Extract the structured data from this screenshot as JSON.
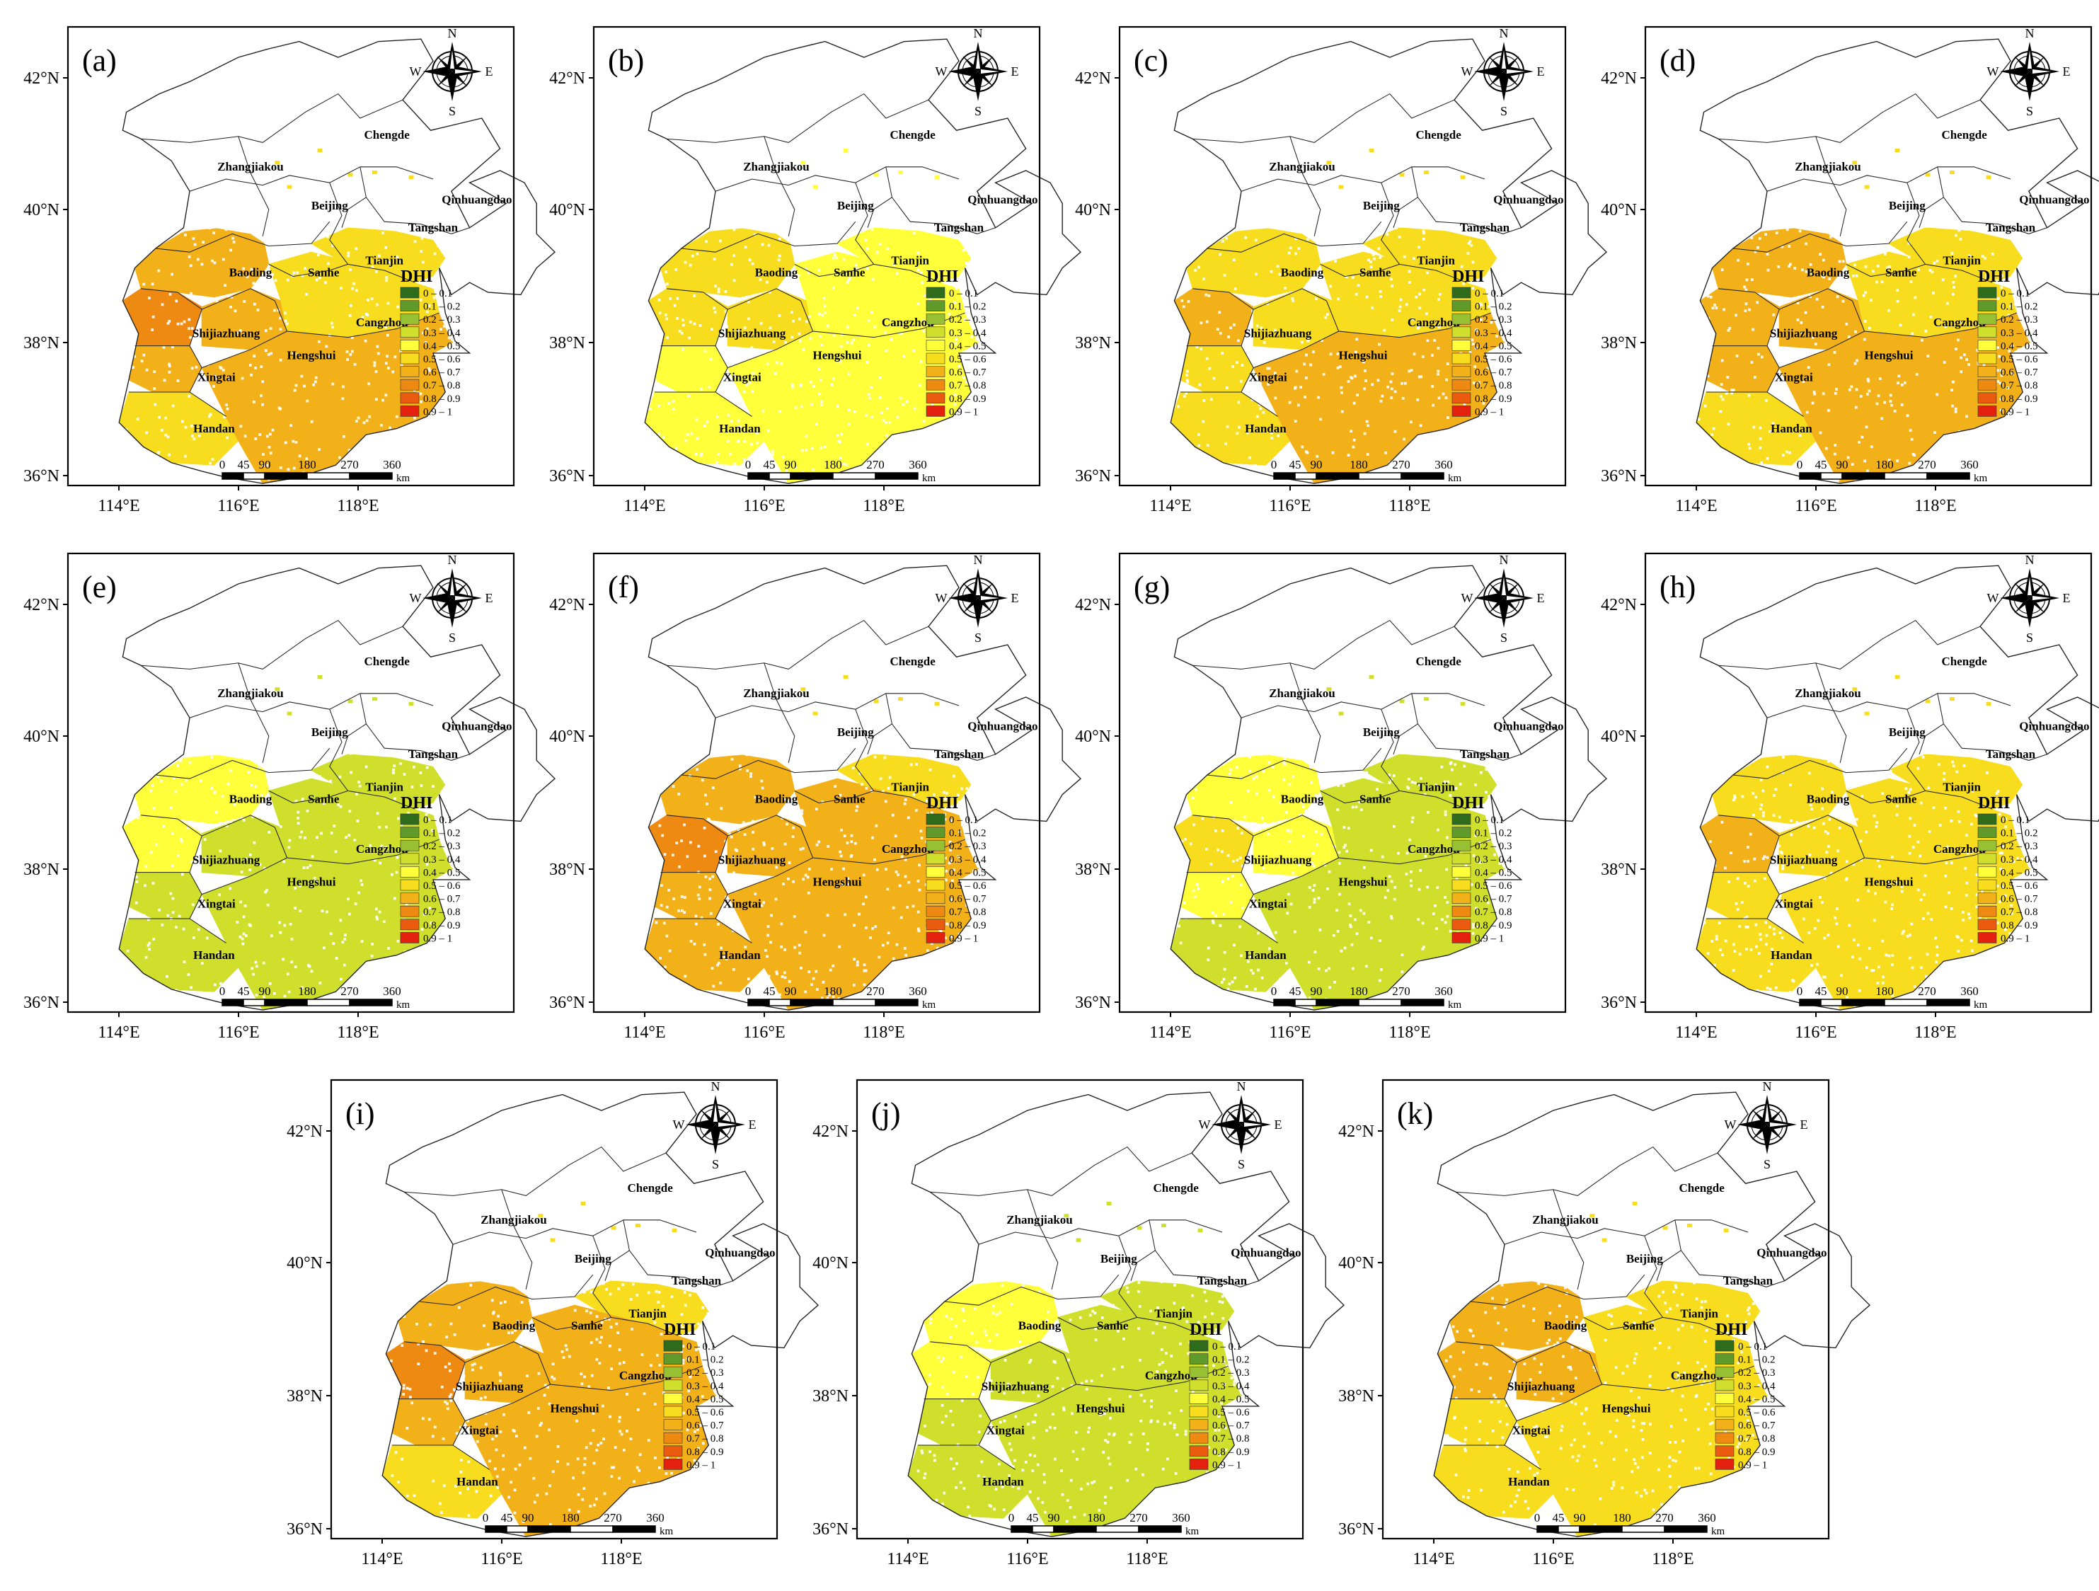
{
  "figure": {
    "legend_title": "DHI",
    "legend_classes": [
      "0 – 0.1",
      "0.1 – 0.2",
      "0.2 – 0.3",
      "0.3 – 0.4",
      "0.4 – 0.5",
      "0.5 – 0.6",
      "0.6 – 0.7",
      "0.7 – 0.8",
      "0.8 – 0.9",
      "0.9 – 1"
    ],
    "legend_colors": [
      "#2e6b1a",
      "#5f9a2a",
      "#97c032",
      "#cfdf2c",
      "#ffff3a",
      "#f7dd1e",
      "#f2b119",
      "#ee8a12",
      "#ea5b10",
      "#e3210e"
    ],
    "lat_labels": [
      "42°N",
      "40°N",
      "38°N",
      "36°N"
    ],
    "lon_labels": [
      "114°E",
      "116°E",
      "118°E"
    ],
    "compass": {
      "n": "N",
      "s": "S",
      "e": "E",
      "w": "W"
    },
    "scalebar_ticks": [
      "0",
      "45",
      "90",
      "180",
      "270",
      "360"
    ],
    "scalebar_unit": "km",
    "cities": [
      "Chengde",
      "Zhangjiakou",
      "Beijing",
      "Qinhuangdao",
      "Tangshan",
      "Tianjin",
      "Baoding",
      "Sanhe",
      "Cangzhou",
      "Shijiazhuang",
      "Hengshui",
      "Xingtai",
      "Handan"
    ]
  },
  "panels": [
    {
      "label": "(a)",
      "fill_index": [
        6,
        6,
        5,
        7,
        6,
        5,
        6,
        5
      ]
    },
    {
      "label": "(b)",
      "fill_index": [
        5,
        4,
        4,
        5,
        5,
        4,
        4,
        4
      ]
    },
    {
      "label": "(c)",
      "fill_index": [
        5,
        5,
        5,
        6,
        5,
        5,
        6,
        5
      ]
    },
    {
      "label": "(d)",
      "fill_index": [
        6,
        6,
        5,
        6,
        6,
        5,
        6,
        5
      ]
    },
    {
      "label": "(e)",
      "fill_index": [
        4,
        3,
        3,
        4,
        3,
        3,
        3,
        3
      ]
    },
    {
      "label": "(f)",
      "fill_index": [
        6,
        6,
        6,
        7,
        6,
        6,
        6,
        5
      ]
    },
    {
      "label": "(g)",
      "fill_index": [
        4,
        4,
        3,
        5,
        4,
        3,
        3,
        3
      ]
    },
    {
      "label": "(h)",
      "fill_index": [
        5,
        5,
        5,
        6,
        5,
        5,
        5,
        5
      ]
    },
    {
      "label": "(i)",
      "fill_index": [
        6,
        6,
        5,
        7,
        6,
        6,
        6,
        5
      ]
    },
    {
      "label": "(j)",
      "fill_index": [
        4,
        3,
        3,
        4,
        3,
        3,
        3,
        3
      ]
    },
    {
      "label": "(k)",
      "fill_index": [
        6,
        5,
        5,
        6,
        6,
        5,
        5,
        5
      ]
    }
  ]
}
